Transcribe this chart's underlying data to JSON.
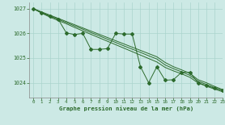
{
  "title": "Graphe pression niveau de la mer (hPa)",
  "bg_color": "#cce9e5",
  "grid_color": "#aad4ce",
  "line_color": "#2d6b2d",
  "xlim": [
    -0.5,
    23
  ],
  "ylim": [
    1023.4,
    1027.25
  ],
  "yticks": [
    1024,
    1025,
    1026,
    1027
  ],
  "xticks": [
    0,
    1,
    2,
    3,
    4,
    5,
    6,
    7,
    8,
    9,
    10,
    11,
    12,
    13,
    14,
    15,
    16,
    17,
    18,
    19,
    20,
    21,
    22,
    23
  ],
  "y_measured": [
    1027.0,
    1026.83,
    1026.7,
    1026.58,
    1026.02,
    1025.95,
    1026.0,
    1025.35,
    1025.35,
    1025.38,
    1026.0,
    1025.97,
    1025.97,
    1024.65,
    1024.0,
    1024.65,
    1024.1,
    1024.12,
    1024.42,
    1024.42,
    1024.0,
    1023.88,
    1023.78,
    1023.68
  ],
  "y_trend1": [
    1027.0,
    1026.87,
    1026.74,
    1026.61,
    1026.48,
    1026.35,
    1026.22,
    1026.09,
    1025.96,
    1025.83,
    1025.7,
    1025.57,
    1025.44,
    1025.31,
    1025.18,
    1025.05,
    1024.82,
    1024.65,
    1024.52,
    1024.38,
    1024.12,
    1024.0,
    1023.85,
    1023.72
  ],
  "y_trend2": [
    1027.0,
    1026.85,
    1026.7,
    1026.57,
    1026.44,
    1026.3,
    1026.17,
    1026.03,
    1025.9,
    1025.76,
    1025.63,
    1025.49,
    1025.36,
    1025.23,
    1025.09,
    1024.96,
    1024.72,
    1024.57,
    1024.44,
    1024.3,
    1024.06,
    1023.93,
    1023.8,
    1023.68
  ],
  "y_trend3": [
    1027.0,
    1026.82,
    1026.66,
    1026.52,
    1026.39,
    1026.24,
    1026.1,
    1025.96,
    1025.82,
    1025.68,
    1025.54,
    1025.4,
    1025.26,
    1025.12,
    1024.98,
    1024.84,
    1024.62,
    1024.48,
    1024.36,
    1024.22,
    1023.99,
    1023.86,
    1023.74,
    1023.63
  ]
}
